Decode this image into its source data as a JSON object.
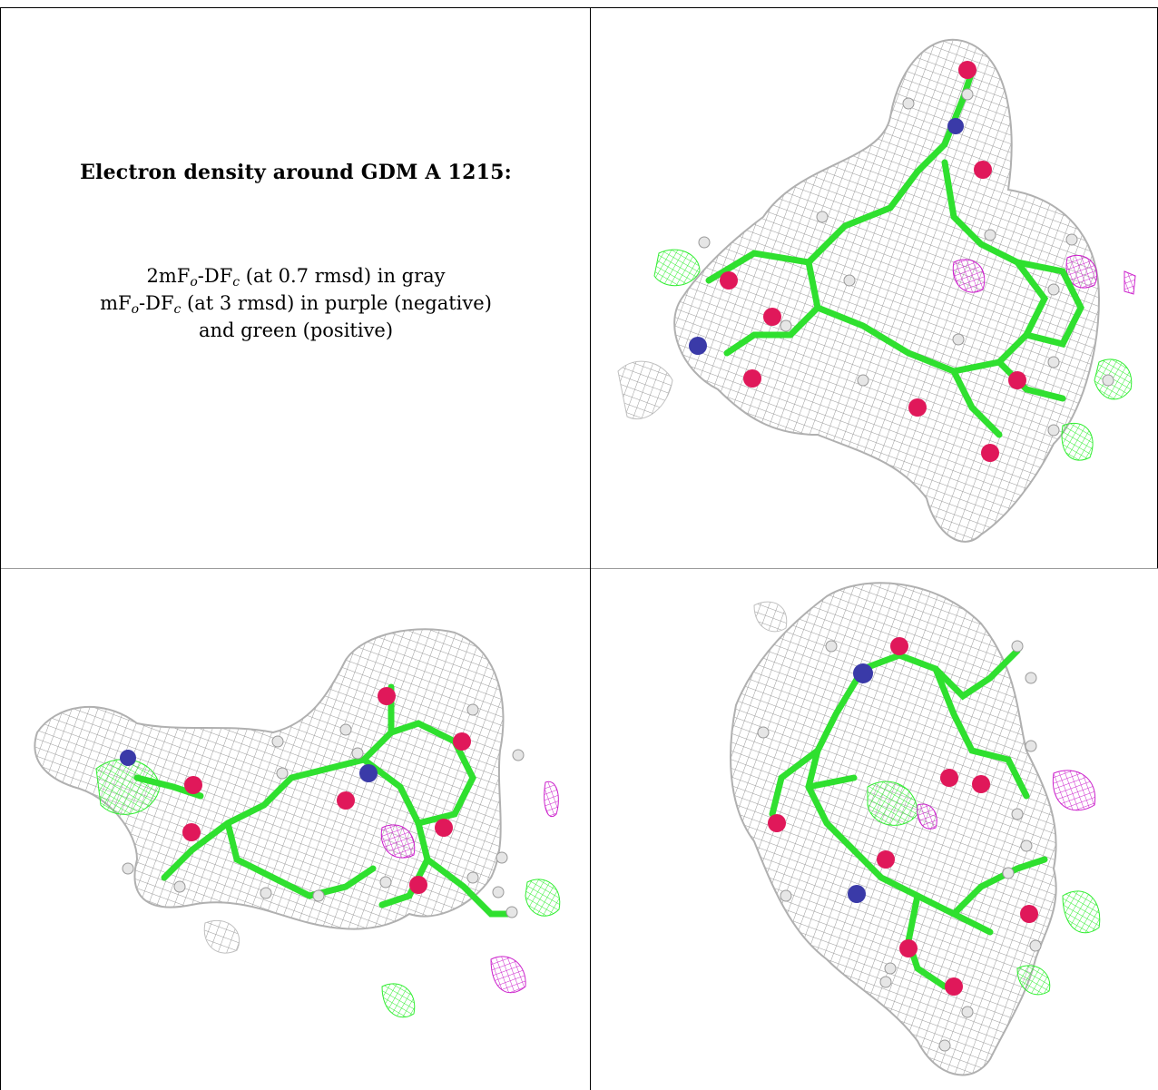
{
  "caption": {
    "title": "Electron density around GDM A 1215:",
    "line1": {
      "pre": "2mF",
      "sub1": "o",
      "mid": "-DF",
      "sub2": "c",
      "post": " (at 0.7 rmsd) in gray"
    },
    "line2": {
      "pre": "mF",
      "sub1": "o",
      "mid": "-DF",
      "sub2": "c",
      "post": " (at 3 rmsd) in purple (negative)"
    },
    "line3": "and green (positive)"
  },
  "colors": {
    "mesh_gray": "#9a9a9a",
    "positive_green": "#33ee33",
    "negative_purple": "#cc22cc",
    "oxygen_red": "#e0185a",
    "nitrogen_blue": "#3a3aa8",
    "hydrogen_white": "#e6e6e6",
    "carbon_green": "#2fe02f"
  },
  "panels": [
    {
      "name": "view-top-right"
    },
    {
      "name": "view-bottom-left"
    },
    {
      "name": "view-bottom-right"
    }
  ]
}
